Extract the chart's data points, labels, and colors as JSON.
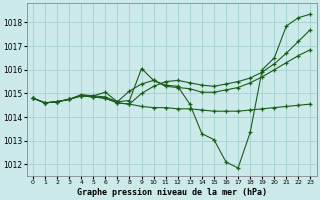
{
  "xlabel": "Graphe pression niveau de la mer (hPa)",
  "bg_color": "#cceaea",
  "grid_color": "#aad4d4",
  "line_color": "#1a5c1a",
  "marker": "+",
  "ylim": [
    1011.5,
    1018.8
  ],
  "yticks": [
    1012,
    1013,
    1014,
    1015,
    1016,
    1017,
    1018
  ],
  "xticks": [
    0,
    1,
    2,
    3,
    4,
    5,
    6,
    7,
    8,
    9,
    10,
    11,
    12,
    13,
    14,
    15,
    16,
    17,
    18,
    19,
    20,
    21,
    22,
    23
  ],
  "series": [
    [
      1014.8,
      1014.6,
      1014.65,
      1014.75,
      1014.9,
      1014.9,
      1014.85,
      1014.65,
      1014.7,
      1016.05,
      1015.55,
      1015.3,
      1015.25,
      1015.2,
      1015.05,
      1015.05,
      1015.15,
      1015.25,
      1015.45,
      1015.7,
      1016.0,
      1016.3,
      1016.6,
      1016.85
    ],
    [
      1014.8,
      1014.6,
      1014.65,
      1014.75,
      1014.9,
      1014.85,
      1014.8,
      1014.6,
      1014.55,
      1014.45,
      1014.4,
      1014.4,
      1014.35,
      1014.35,
      1014.3,
      1014.25,
      1014.25,
      1014.25,
      1014.3,
      1014.35,
      1014.4,
      1014.45,
      1014.5,
      1014.55
    ],
    [
      1014.8,
      1014.6,
      1014.65,
      1014.75,
      1014.95,
      1014.9,
      1015.05,
      1014.65,
      1015.1,
      1015.4,
      1015.55,
      1015.35,
      1015.3,
      1014.55,
      1013.3,
      1013.05,
      1012.1,
      1011.85,
      1013.35,
      1016.0,
      1016.5,
      1017.85,
      1018.2,
      1018.35
    ],
    [
      1014.8,
      1014.6,
      1014.65,
      1014.75,
      1014.9,
      1014.85,
      1014.8,
      1014.6,
      1014.55,
      1015.0,
      1015.3,
      1015.5,
      1015.55,
      1015.45,
      1015.35,
      1015.3,
      1015.4,
      1015.5,
      1015.65,
      1015.9,
      1016.25,
      1016.7,
      1017.2,
      1017.7
    ]
  ]
}
